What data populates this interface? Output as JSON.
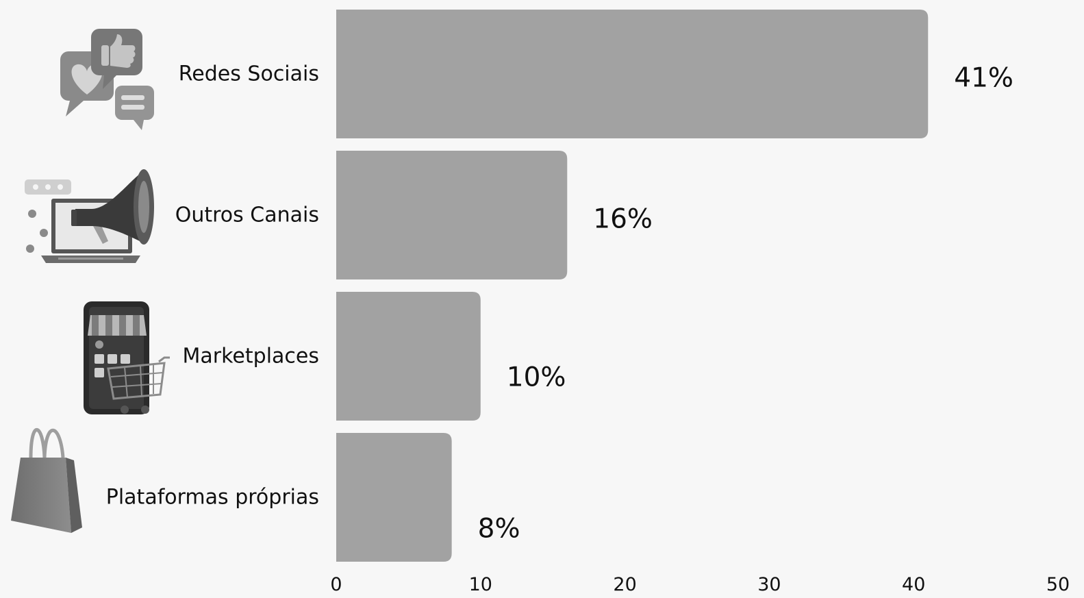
{
  "chart_data": {
    "type": "bar",
    "orientation": "horizontal",
    "categories": [
      "Redes Sociais",
      "Outros Canais",
      "Marketplaces",
      "Plataformas próprias"
    ],
    "values": [
      41,
      16,
      10,
      8
    ],
    "value_labels": [
      "41%",
      "16%",
      "10%",
      "8%"
    ],
    "xlim": [
      0,
      50
    ],
    "xticks": [
      0,
      10,
      20,
      30,
      40,
      50
    ],
    "xtick_labels": [
      "0",
      "10",
      "20",
      "30",
      "40",
      "50"
    ],
    "grid": false,
    "legend": "none",
    "category_icons": [
      "social-media-icon",
      "megaphone-laptop-icon",
      "smartphone-store-icon",
      "shopping-bag-icon"
    ],
    "colors": {
      "bar": "#a2a2a2",
      "background": "#f7f7f7",
      "text": "#111111"
    }
  }
}
